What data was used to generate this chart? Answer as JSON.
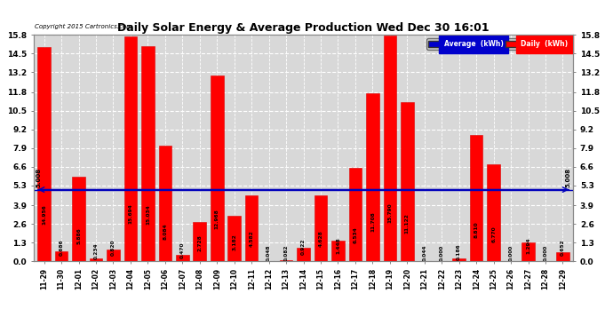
{
  "title": "Daily Solar Energy & Average Production Wed Dec 30 16:01",
  "copyright": "Copyright 2015 Cartronics.com",
  "categories": [
    "11-29",
    "11-30",
    "12-01",
    "12-02",
    "12-03",
    "12-04",
    "12-05",
    "12-06",
    "12-07",
    "12-08",
    "12-09",
    "12-10",
    "12-11",
    "12-12",
    "12-13",
    "12-14",
    "12-15",
    "12-16",
    "12-17",
    "12-18",
    "12-19",
    "12-20",
    "12-21",
    "12-22",
    "12-23",
    "12-24",
    "12-25",
    "12-26",
    "12-27",
    "12-28",
    "12-29"
  ],
  "values": [
    14.956,
    0.686,
    5.886,
    0.234,
    0.82,
    15.694,
    15.034,
    8.084,
    0.47,
    2.728,
    12.968,
    3.182,
    4.582,
    0.048,
    0.082,
    0.922,
    4.628,
    1.448,
    6.534,
    11.708,
    15.79,
    11.122,
    0.044,
    0.0,
    0.186,
    8.81,
    6.77,
    0.0,
    1.294,
    0.0,
    0.652
  ],
  "average": 5.008,
  "ylim": [
    0.0,
    15.8
  ],
  "yticks": [
    0.0,
    1.3,
    2.6,
    3.9,
    5.3,
    6.6,
    7.9,
    9.2,
    10.5,
    11.8,
    13.2,
    14.5,
    15.8
  ],
  "bar_color": "#ff0000",
  "bar_edge_color": "#dd0000",
  "average_line_color": "#0000bb",
  "background_color": "#ffffff",
  "plot_bg_color": "#d8d8d8",
  "grid_color": "#ffffff",
  "legend_avg_bg": "#0000cc",
  "legend_daily_bg": "#ff0000",
  "legend_avg_label": "Average  (kWh)",
  "legend_daily_label": "Daily  (kWh)"
}
